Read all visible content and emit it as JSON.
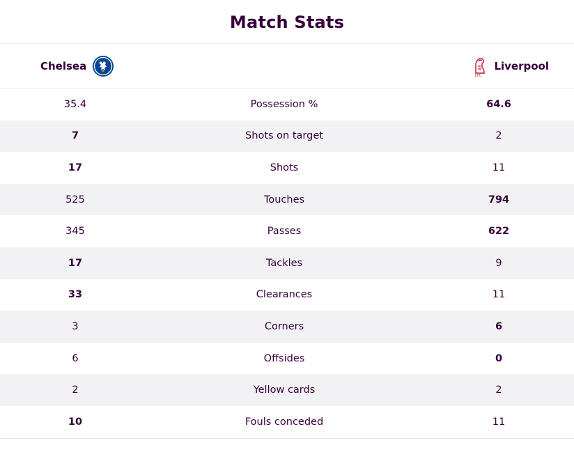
{
  "title": "Match Stats",
  "home_team": {
    "name": "Chelsea",
    "crest_icon": "chelsea-crest-icon",
    "color": "#034694"
  },
  "away_team": {
    "name": "Liverpool",
    "crest_icon": "liverpool-crest-icon",
    "color": "#c8102e"
  },
  "stats": [
    {
      "label": "Possession %",
      "home": "35.4",
      "away": "64.6",
      "leader": "away"
    },
    {
      "label": "Shots on target",
      "home": "7",
      "away": "2",
      "leader": "home"
    },
    {
      "label": "Shots",
      "home": "17",
      "away": "11",
      "leader": "home"
    },
    {
      "label": "Touches",
      "home": "525",
      "away": "794",
      "leader": "away"
    },
    {
      "label": "Passes",
      "home": "345",
      "away": "622",
      "leader": "away"
    },
    {
      "label": "Tackles",
      "home": "17",
      "away": "9",
      "leader": "home"
    },
    {
      "label": "Clearances",
      "home": "33",
      "away": "11",
      "leader": "home"
    },
    {
      "label": "Corners",
      "home": "3",
      "away": "6",
      "leader": "away"
    },
    {
      "label": "Offsides",
      "home": "6",
      "away": "0",
      "leader": "away"
    },
    {
      "label": "Yellow cards",
      "home": "2",
      "away": "2",
      "leader": "none"
    },
    {
      "label": "Fouls conceded",
      "home": "10",
      "away": "11",
      "leader": "home"
    }
  ],
  "colors": {
    "text": "#37003c",
    "row_alt": "#f2f2f4"
  }
}
